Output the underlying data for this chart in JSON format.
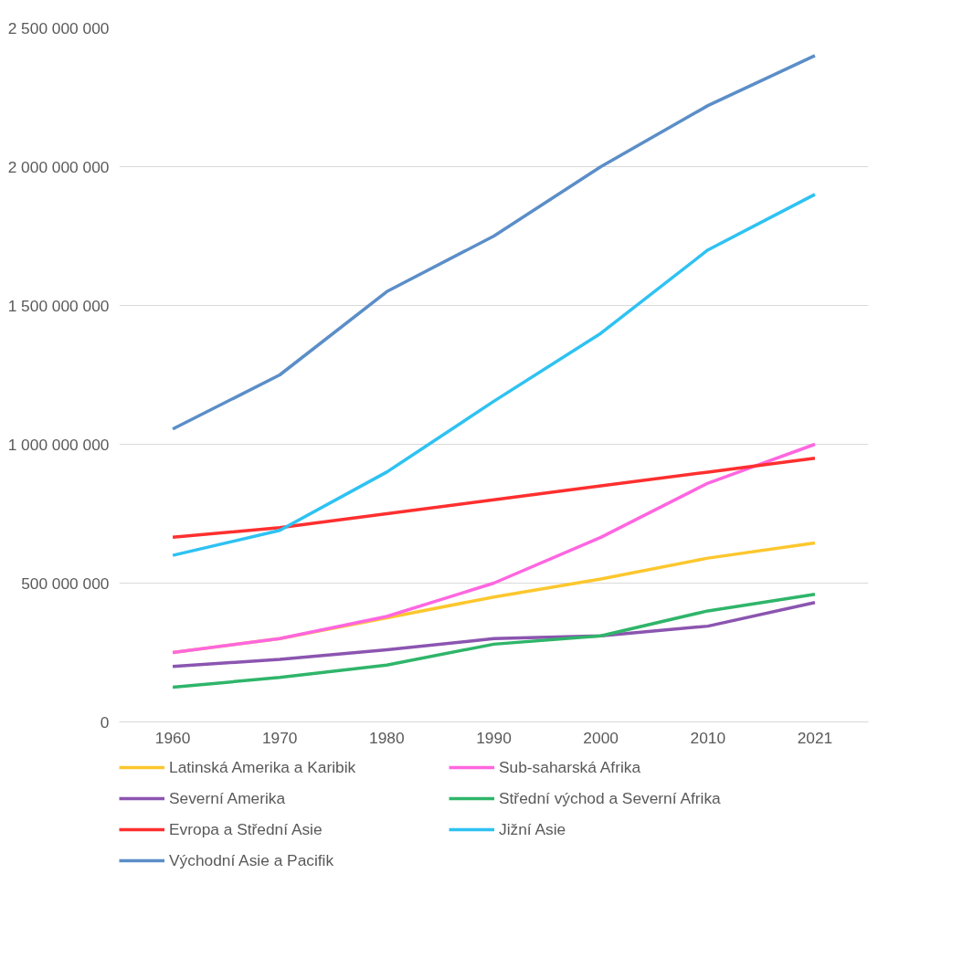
{
  "chart_data": {
    "type": "line",
    "categories": [
      "1960",
      "1970",
      "1980",
      "1990",
      "2000",
      "2010",
      "2021"
    ],
    "ylim": [
      0,
      2500000000
    ],
    "yticks": [
      {
        "value": 0,
        "label": "0"
      },
      {
        "value": 500000000,
        "label": "500 000 000"
      },
      {
        "value": 1000000000,
        "label": "1 000 000 000"
      },
      {
        "value": 1500000000,
        "label": "1 500 000 000"
      },
      {
        "value": 2000000000,
        "label": "2 000 000 000"
      },
      {
        "value": 2500000000,
        "label": "2 500 000 000"
      }
    ],
    "grid": "y",
    "legend": "bottom",
    "marker": "none",
    "line_style": "solid",
    "series": [
      {
        "name": "Latinská Amerika a Karibik",
        "color": "#fcc72e",
        "values": [
          250000000,
          300000000,
          375000000,
          450000000,
          515000000,
          590000000,
          645000000
        ]
      },
      {
        "name": "Sub-saharská Afrika",
        "color": "#ff66e0",
        "values": [
          250000000,
          300000000,
          380000000,
          500000000,
          665000000,
          860000000,
          1000000000
        ]
      },
      {
        "name": "Severní Amerika",
        "color": "#8b55b0",
        "values": [
          200000000,
          225000000,
          260000000,
          300000000,
          310000000,
          345000000,
          430000000
        ]
      },
      {
        "name": "Střední východ a Severní Afrika",
        "color": "#2fb56a",
        "values": [
          125000000,
          160000000,
          205000000,
          280000000,
          310000000,
          400000000,
          460000000
        ]
      },
      {
        "name": "Evropa a Střední Asie",
        "color": "#ff2f2f",
        "values": [
          665000000,
          700000000,
          750000000,
          800000000,
          850000000,
          900000000,
          950000000
        ]
      },
      {
        "name": "Jižní Asie",
        "color": "#2ec2f2",
        "values": [
          600000000,
          690000000,
          900000000,
          1155000000,
          1400000000,
          1700000000,
          1900000000
        ]
      },
      {
        "name": "Východní Asie a Pacifik",
        "color": "#5b8ec8",
        "values": [
          1055000000,
          1250000000,
          1550000000,
          1750000000,
          2000000000,
          2220000000,
          2400000000
        ]
      }
    ]
  }
}
